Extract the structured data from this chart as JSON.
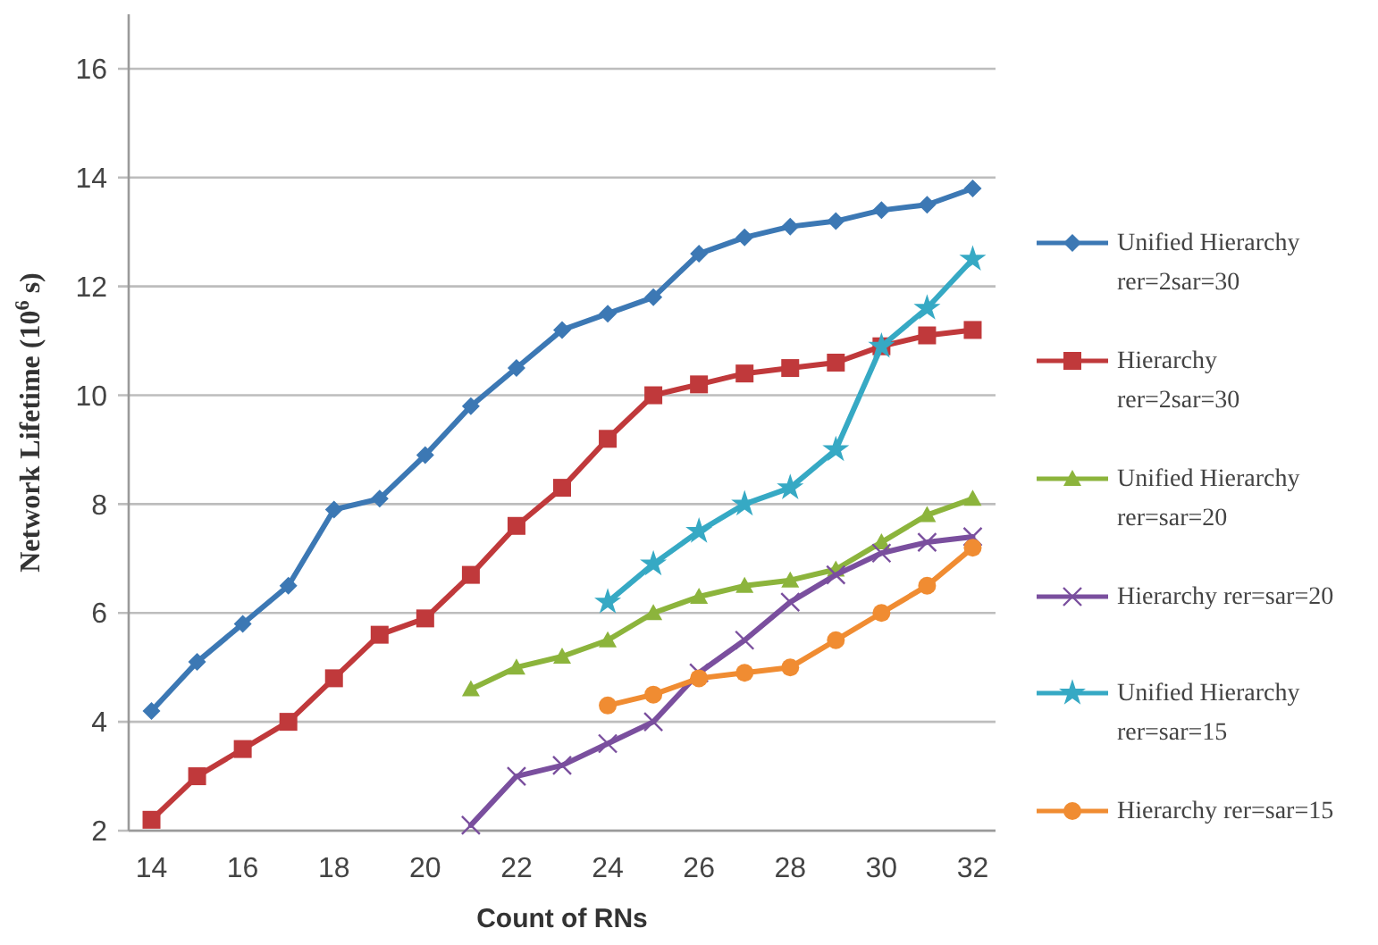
{
  "chart_data": {
    "type": "line",
    "xlabel": "Count of RNs",
    "ylabel": "Network Lifetime (10$^{6}$ s)",
    "xlim": [
      13.5,
      32.5
    ],
    "xticks": [
      14,
      16,
      18,
      20,
      22,
      24,
      26,
      28,
      30,
      32
    ],
    "ylim": [
      2,
      17
    ],
    "yticks": [
      2,
      4,
      6,
      8,
      10,
      12,
      14,
      16
    ],
    "grid": "y",
    "legend": "right",
    "line_style": "solid",
    "series": [
      {
        "name": "Unified Hierarchy rer=2sar=30",
        "color": "#3c78b4",
        "marker": "diamond",
        "x": [
          14,
          15,
          16,
          17,
          18,
          19,
          20,
          21,
          22,
          23,
          24,
          25,
          26,
          27,
          28,
          29,
          30,
          31,
          32
        ],
        "values": [
          4.2,
          5.1,
          5.8,
          6.5,
          7.9,
          8.1,
          8.9,
          9.8,
          10.5,
          11.2,
          11.5,
          11.8,
          12.6,
          12.9,
          13.1,
          13.2,
          13.4,
          13.5,
          13.8
        ]
      },
      {
        "name": "Hierarchy rer=2sar=30",
        "color": "#c0393b",
        "marker": "square",
        "x": [
          14,
          15,
          16,
          17,
          18,
          19,
          20,
          21,
          22,
          23,
          24,
          25,
          26,
          27,
          28,
          29,
          30,
          31,
          32
        ],
        "values": [
          2.2,
          3.0,
          3.5,
          4.0,
          4.8,
          5.6,
          5.9,
          6.7,
          7.6,
          8.3,
          9.2,
          10.0,
          10.2,
          10.4,
          10.5,
          10.6,
          10.9,
          11.1,
          11.2
        ]
      },
      {
        "name": "Unified Hierarchy rer=sar=20",
        "color": "#8cb43c",
        "marker": "triangle",
        "x": [
          21,
          22,
          23,
          24,
          25,
          26,
          27,
          28,
          29,
          30,
          31,
          32
        ],
        "values": [
          4.6,
          5.0,
          5.2,
          5.5,
          6.0,
          6.3,
          6.5,
          6.6,
          6.8,
          7.3,
          7.8,
          8.1
        ]
      },
      {
        "name": "Hierarchy rer=sar=20",
        "color": "#7a4f9e",
        "marker": "cross",
        "x": [
          21,
          22,
          23,
          24,
          25,
          26,
          27,
          28,
          29,
          30,
          31,
          32
        ],
        "values": [
          2.1,
          3.0,
          3.2,
          3.6,
          4.0,
          4.9,
          5.5,
          6.2,
          6.7,
          7.1,
          7.3,
          7.4
        ]
      },
      {
        "name": "Unified Hierarchy rer=sar=15",
        "color": "#36a9c4",
        "marker": "star",
        "x": [
          24,
          25,
          26,
          27,
          28,
          29,
          30,
          31,
          32
        ],
        "values": [
          6.2,
          6.9,
          7.5,
          8.0,
          8.3,
          9.0,
          10.9,
          11.6,
          12.5
        ]
      },
      {
        "name": "Hierarchy rer=sar=15",
        "color": "#f08c32",
        "marker": "circle",
        "x": [
          24,
          25,
          26,
          27,
          28,
          29,
          30,
          31,
          32
        ],
        "values": [
          4.3,
          4.5,
          4.8,
          4.9,
          5.0,
          5.5,
          6.0,
          6.5,
          7.2
        ]
      }
    ]
  }
}
